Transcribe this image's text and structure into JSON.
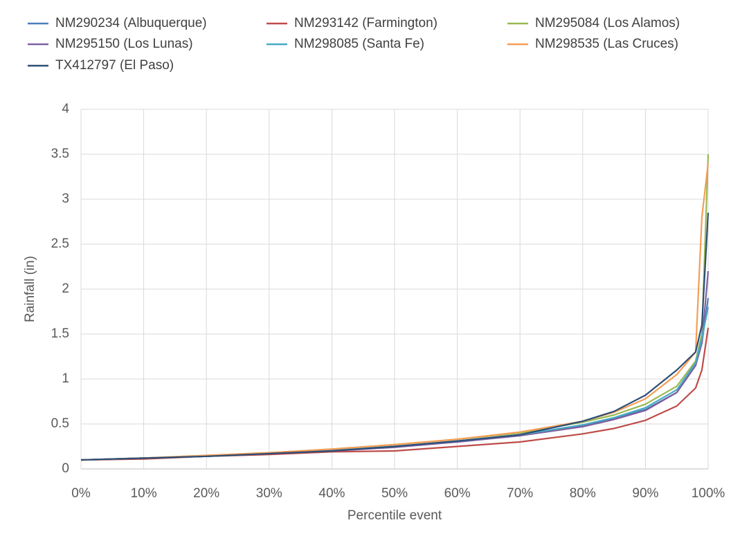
{
  "chart_data": {
    "type": "line",
    "x_label": "Percentile event",
    "y_label": "Rainfall (in)",
    "x": [
      0,
      10,
      20,
      30,
      40,
      50,
      60,
      70,
      80,
      85,
      90,
      95,
      98,
      99,
      100
    ],
    "series": [
      {
        "name": "NM290234 (Albuquerque)",
        "color": "#4a7ebb",
        "values": [
          0.1,
          0.12,
          0.14,
          0.17,
          0.2,
          0.25,
          0.3,
          0.37,
          0.48,
          0.56,
          0.66,
          0.85,
          1.15,
          1.4,
          1.9
        ]
      },
      {
        "name": "NM293142 (Farmington)",
        "color": "#be4b48",
        "values": [
          0.1,
          0.11,
          0.14,
          0.16,
          0.19,
          0.2,
          0.25,
          0.3,
          0.39,
          0.45,
          0.54,
          0.7,
          0.9,
          1.1,
          1.57
        ]
      },
      {
        "name": "NM295084 (Los Alamos)",
        "color": "#98b954",
        "values": [
          0.1,
          0.12,
          0.15,
          0.18,
          0.22,
          0.27,
          0.33,
          0.4,
          0.52,
          0.6,
          0.72,
          0.92,
          1.2,
          1.5,
          3.5
        ]
      },
      {
        "name": "NM295150 (Los Lunas)",
        "color": "#7d60a0",
        "values": [
          0.1,
          0.12,
          0.14,
          0.17,
          0.2,
          0.24,
          0.3,
          0.37,
          0.47,
          0.55,
          0.65,
          0.85,
          1.15,
          1.4,
          2.2
        ]
      },
      {
        "name": "NM298085 (Santa Fe)",
        "color": "#46aac5",
        "values": [
          0.1,
          0.12,
          0.14,
          0.17,
          0.21,
          0.25,
          0.31,
          0.38,
          0.49,
          0.57,
          0.68,
          0.88,
          1.18,
          1.45,
          1.8
        ]
      },
      {
        "name": "NM298535 (Las Cruces)",
        "color": "#f59d56",
        "values": [
          0.1,
          0.12,
          0.15,
          0.18,
          0.22,
          0.27,
          0.33,
          0.41,
          0.53,
          0.63,
          0.78,
          1.05,
          1.3,
          2.8,
          3.4
        ]
      },
      {
        "name": "TX412797 (El Paso)",
        "color": "#2c4d75",
        "values": [
          0.1,
          0.12,
          0.14,
          0.17,
          0.2,
          0.25,
          0.31,
          0.38,
          0.53,
          0.64,
          0.82,
          1.1,
          1.3,
          1.6,
          2.85
        ]
      }
    ],
    "xlim": [
      0,
      100
    ],
    "xticks": [
      {
        "value": 0,
        "label": "0%"
      },
      {
        "value": 10,
        "label": "10%"
      },
      {
        "value": 20,
        "label": "20%"
      },
      {
        "value": 30,
        "label": "30%"
      },
      {
        "value": 40,
        "label": "40%"
      },
      {
        "value": 50,
        "label": "50%"
      },
      {
        "value": 60,
        "label": "60%"
      },
      {
        "value": 70,
        "label": "70%"
      },
      {
        "value": 80,
        "label": "80%"
      },
      {
        "value": 90,
        "label": "90%"
      },
      {
        "value": 100,
        "label": "100%"
      }
    ],
    "ylim": [
      0,
      4
    ],
    "yticks": [
      0,
      0.5,
      1,
      1.5,
      2,
      2.5,
      3,
      3.5,
      4
    ],
    "grid": true,
    "legend": "top"
  }
}
